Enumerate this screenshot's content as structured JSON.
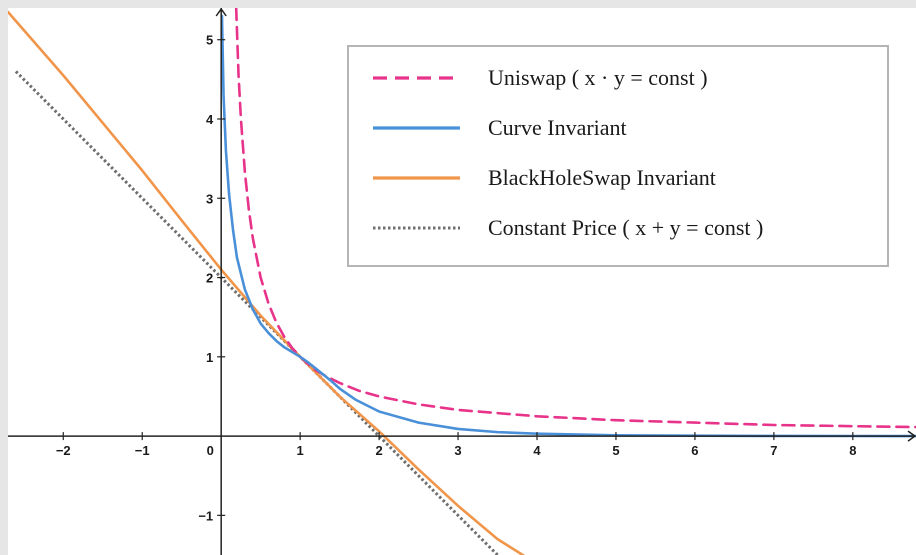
{
  "chart_data": {
    "type": "line",
    "title": "",
    "xlabel": "",
    "ylabel": "",
    "xlim": [
      -2.7,
      8.8
    ],
    "ylim": [
      -1.5,
      5.4
    ],
    "x_ticks": [
      -2,
      -1,
      0,
      1,
      2,
      3,
      4,
      5,
      6,
      7,
      8
    ],
    "x_tick_labels": [
      "−2",
      "−1",
      "0",
      "1",
      "2",
      "3",
      "4",
      "5",
      "6",
      "7",
      "8"
    ],
    "y_ticks": [
      5,
      4,
      3,
      2,
      1,
      -1
    ],
    "y_tick_labels": [
      "5",
      "4",
      "3",
      "2",
      "1",
      "−1"
    ],
    "grid": false,
    "legend_position": "top-right",
    "series": [
      {
        "name": "Uniswap ( x · y = const )",
        "color": "#e8338a",
        "dash": "dashed",
        "x": [
          0.19,
          0.22,
          0.25,
          0.3,
          0.35,
          0.4,
          0.5,
          0.6,
          0.7,
          0.8,
          0.9,
          1.0,
          1.1,
          1.2,
          1.3,
          1.5,
          1.75,
          2.0,
          2.5,
          3.0,
          3.5,
          4.0,
          5.0,
          6.0,
          7.0,
          8.0,
          8.8
        ],
        "y": [
          5.4,
          4.55,
          4.0,
          3.33,
          2.86,
          2.5,
          2.0,
          1.67,
          1.43,
          1.25,
          1.11,
          1.0,
          0.91,
          0.83,
          0.77,
          0.67,
          0.57,
          0.5,
          0.4,
          0.33,
          0.29,
          0.25,
          0.2,
          0.17,
          0.14,
          0.125,
          0.114
        ]
      },
      {
        "name": "Curve Invariant",
        "color": "#4a90d9",
        "dash": "solid",
        "x": [
          0.01,
          0.03,
          0.06,
          0.1,
          0.15,
          0.2,
          0.3,
          0.4,
          0.5,
          0.6,
          0.7,
          0.8,
          0.9,
          1.0,
          1.1,
          1.2,
          1.3,
          1.4,
          1.5,
          1.7,
          2.0,
          2.5,
          3.0,
          3.5,
          4.0,
          5.0,
          6.0,
          7.0,
          8.0,
          8.8
        ],
        "y": [
          5.3,
          4.3,
          3.6,
          3.05,
          2.6,
          2.25,
          1.85,
          1.6,
          1.42,
          1.3,
          1.2,
          1.12,
          1.06,
          1.0,
          0.93,
          0.85,
          0.77,
          0.69,
          0.6,
          0.46,
          0.31,
          0.17,
          0.09,
          0.05,
          0.03,
          0.01,
          0.005,
          0.002,
          0.001,
          0.0
        ]
      },
      {
        "name": "BlackHoleSwap Invariant",
        "color": "#f0954a",
        "dash": "solid",
        "x": [
          -2.7,
          -2.0,
          -1.5,
          -1.0,
          -0.5,
          0.0,
          0.5,
          1.0,
          1.5,
          2.0,
          2.5,
          3.0,
          3.5,
          3.9
        ],
        "y": [
          5.35,
          4.55,
          3.95,
          3.35,
          2.72,
          2.1,
          1.52,
          1.0,
          0.5,
          0.06,
          -0.42,
          -0.88,
          -1.3,
          -1.55
        ]
      },
      {
        "name": "Constant Price ( x + y = const )",
        "color": "#6e6e6e",
        "dash": "dotted",
        "x": [
          -2.6,
          3.5
        ],
        "y": [
          4.6,
          -1.5
        ]
      }
    ]
  }
}
